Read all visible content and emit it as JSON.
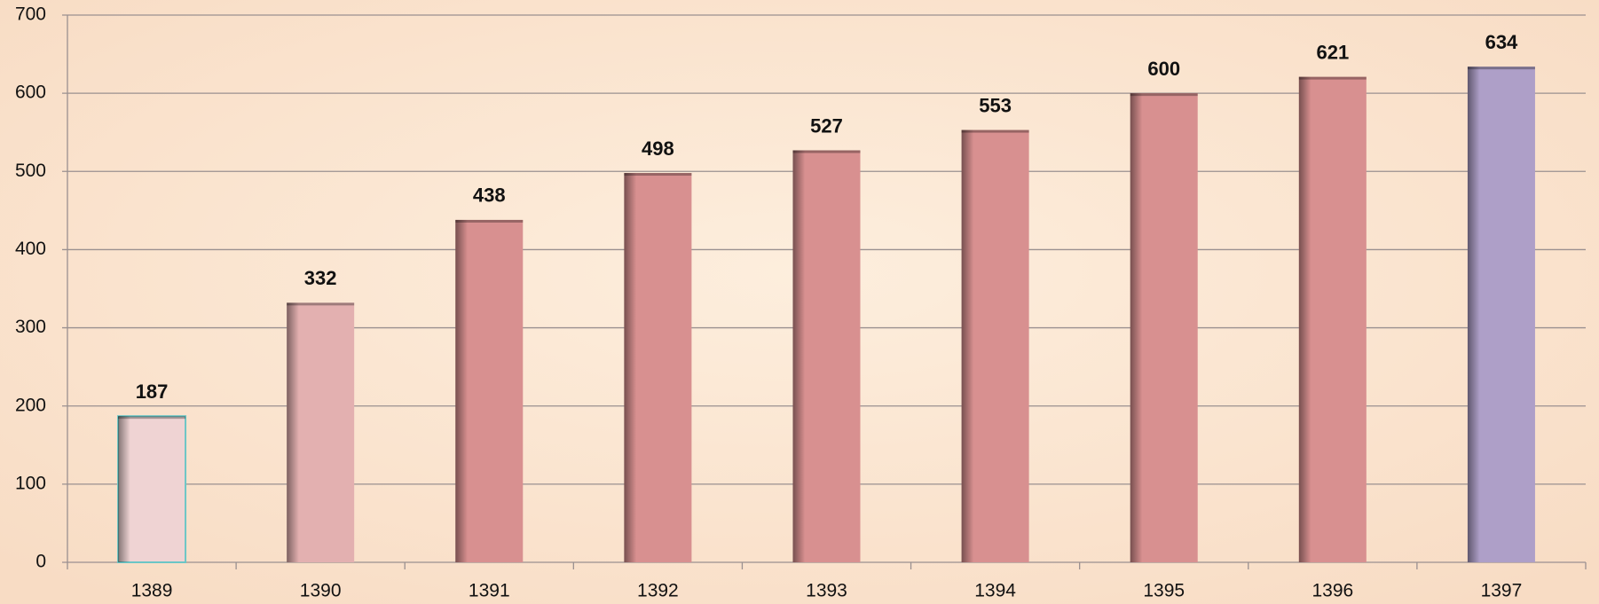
{
  "chart_data": {
    "type": "bar",
    "categories": [
      "1389",
      "1390",
      "1391",
      "1392",
      "1393",
      "1394",
      "1395",
      "1396",
      "1397"
    ],
    "values": [
      187,
      332,
      438,
      498,
      527,
      553,
      600,
      621,
      634
    ],
    "colors": [
      "#efd3d3",
      "#e3b0b0",
      "#d89090",
      "#d89090",
      "#d89090",
      "#d89090",
      "#d89090",
      "#d89090",
      "#ae9fc8"
    ],
    "ylim": [
      0,
      700
    ],
    "yticks": [
      0,
      100,
      200,
      300,
      400,
      500,
      600,
      700
    ],
    "grid": true
  }
}
